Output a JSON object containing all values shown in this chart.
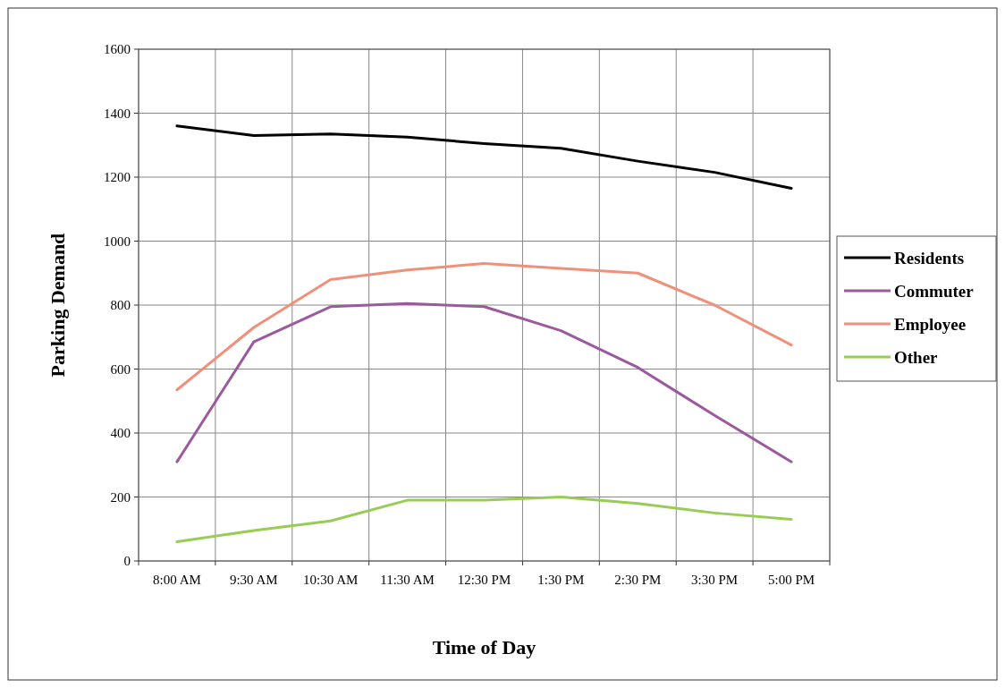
{
  "chart_data": {
    "type": "line",
    "xlabel": "Time of Day",
    "ylabel": "Parking Demand",
    "categories": [
      "8:00 AM",
      "9:30 AM",
      "10:30 AM",
      "11:30 AM",
      "12:30 PM",
      "1:30 PM",
      "2:30 PM",
      "3:30 PM",
      "5:00 PM"
    ],
    "series": [
      {
        "name": "Residents",
        "color": "#000000",
        "values": [
          1360,
          1330,
          1335,
          1325,
          1305,
          1290,
          1250,
          1215,
          1165
        ]
      },
      {
        "name": "Commuter",
        "color": "#9b5a9b",
        "values": [
          310,
          685,
          795,
          805,
          795,
          720,
          605,
          455,
          310
        ]
      },
      {
        "name": "Employee",
        "color": "#f0907a",
        "values": [
          535,
          730,
          880,
          910,
          930,
          915,
          900,
          800,
          675
        ]
      },
      {
        "name": "Other",
        "color": "#99cc55",
        "values": [
          60,
          95,
          125,
          190,
          190,
          200,
          180,
          150,
          130
        ]
      }
    ],
    "ylim": [
      0,
      1600
    ],
    "yticks": [
      0,
      200,
      400,
      600,
      800,
      1000,
      1200,
      1400,
      1600
    ],
    "grid": true,
    "legend": "right",
    "marker": "none",
    "line_style": "solid"
  }
}
